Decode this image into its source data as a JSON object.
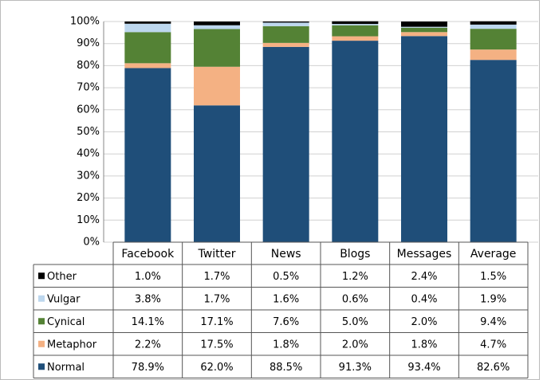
{
  "chart_data": {
    "type": "stacked_bar",
    "categories": [
      "Facebook",
      "Twitter",
      "News",
      "Blogs",
      "Messages",
      "Average"
    ],
    "series": [
      {
        "name": "Normal",
        "color": "#1f4e79",
        "values": [
          78.9,
          62.0,
          88.5,
          91.3,
          93.4,
          82.6
        ],
        "value_labels": [
          "78.9%",
          "62.0%",
          "88.5%",
          "91.3%",
          "93.4%",
          "82.6%"
        ]
      },
      {
        "name": "Metaphor",
        "color": "#f4b183",
        "values": [
          2.2,
          17.5,
          1.8,
          2.0,
          1.8,
          4.7
        ],
        "value_labels": [
          "2.2%",
          "17.5%",
          "1.8%",
          "2.0%",
          "1.8%",
          "4.7%"
        ]
      },
      {
        "name": "Cynical",
        "color": "#548235",
        "values": [
          14.1,
          17.1,
          7.6,
          5.0,
          2.0,
          9.4
        ],
        "value_labels": [
          "14.1%",
          "17.1%",
          "7.6%",
          "5.0%",
          "2.0%",
          "9.4%"
        ]
      },
      {
        "name": "Vulgar",
        "color": "#bdd7ee",
        "values": [
          3.8,
          1.7,
          1.6,
          0.6,
          0.4,
          1.9
        ],
        "value_labels": [
          "3.8%",
          "1.7%",
          "1.6%",
          "0.6%",
          "0.4%",
          "1.9%"
        ]
      },
      {
        "name": "Other",
        "color": "#000000",
        "values": [
          1.0,
          1.7,
          0.5,
          1.2,
          2.4,
          1.5
        ],
        "value_labels": [
          "1.0%",
          "1.7%",
          "0.5%",
          "1.2%",
          "2.4%",
          "1.5%"
        ]
      }
    ],
    "ylim": [
      0,
      100
    ],
    "yticks": [
      {
        "value": 0,
        "label": "0%"
      },
      {
        "value": 10,
        "label": "10%"
      },
      {
        "value": 20,
        "label": "20%"
      },
      {
        "value": 30,
        "label": "30%"
      },
      {
        "value": 40,
        "label": "40%"
      },
      {
        "value": 50,
        "label": "50%"
      },
      {
        "value": 60,
        "label": "60%"
      },
      {
        "value": 70,
        "label": "70%"
      },
      {
        "value": 80,
        "label": "80%"
      },
      {
        "value": 90,
        "label": "90%"
      },
      {
        "value": 100,
        "label": "100%"
      }
    ],
    "grid": true
  }
}
